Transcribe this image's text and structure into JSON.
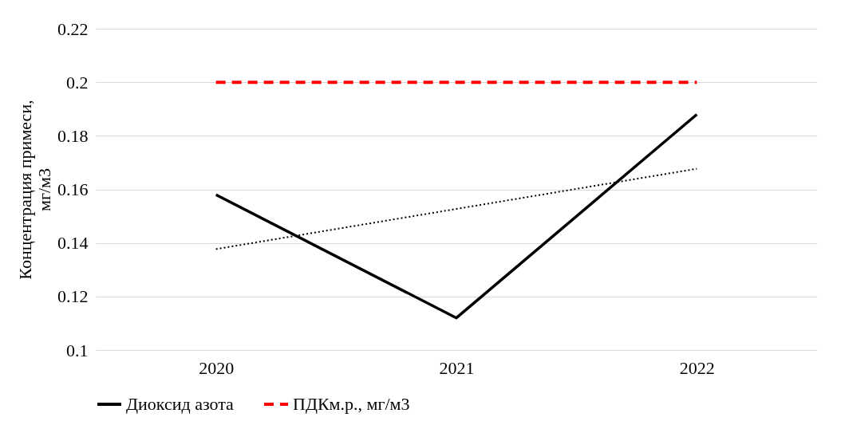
{
  "chart_data": {
    "type": "line",
    "categories": [
      "2020",
      "2021",
      "2022"
    ],
    "ylabel": "Концентрация примеси, мг/м3",
    "series": [
      {
        "name": "Диоксид азота",
        "color": "#000000",
        "values": [
          0.158,
          0.112,
          0.188
        ],
        "line_style": "solid"
      },
      {
        "name": "ПДКм.р., мг/м3",
        "color": "#ff0000",
        "values": [
          0.2,
          0.2,
          0.2
        ],
        "line_style": "dashed"
      },
      {
        "type": "line",
        "color": "#000000",
        "values": [
          0.1377,
          0.1527,
          0.1677
        ],
        "line_style": "dotted"
      }
    ],
    "ylim": [
      0.1,
      0.22
    ],
    "yticks": [
      0.1,
      0.12,
      0.14,
      0.16,
      0.18,
      0.2,
      0.22
    ],
    "grid": "y",
    "legend": "bottom",
    "marker": "none"
  }
}
